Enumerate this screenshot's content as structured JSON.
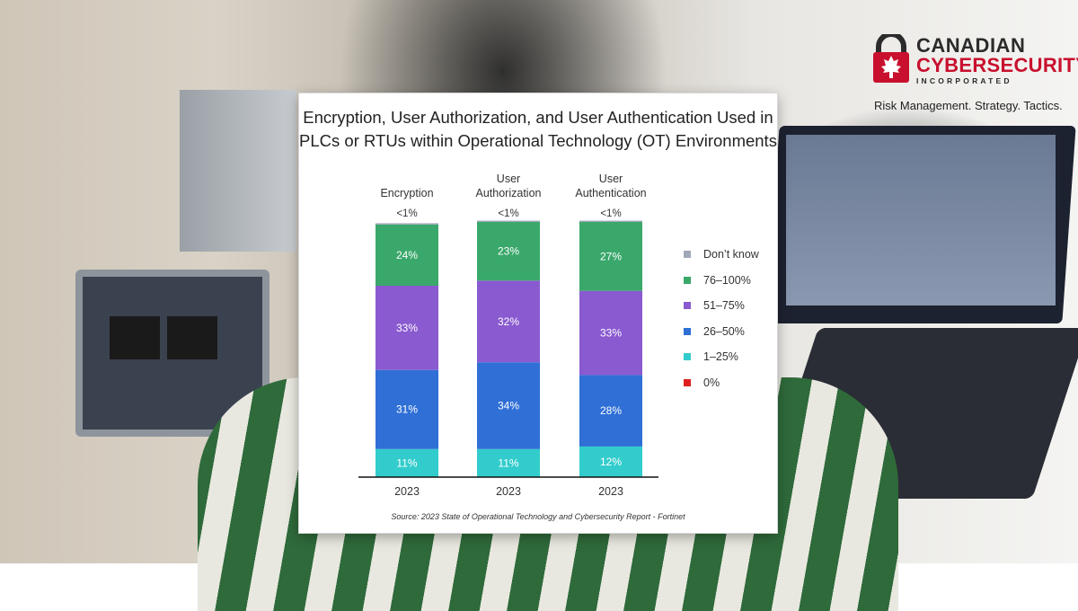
{
  "brand": {
    "line1": "CANADIAN",
    "line2": "CYBERSECURITY",
    "line3": "INCORPORATED",
    "tagline": "Risk Management. Strategy. Tactics.",
    "accent": "#c8102e"
  },
  "source": "Source: 2023 State of Operational Technology and Cybersecurity Report - Fortinet",
  "chart_data": {
    "type": "bar",
    "stacked": true,
    "title": "Encryption, User Authorization, and User Authentication Used in PLCs or RTUs within Operational Technology (OT) Environments",
    "title_lines": [
      "Encryption, User Authorization, and User Authentication Used in",
      "PLCs or RTUs within Operational Technology (OT) Environments"
    ],
    "groups": [
      {
        "label_lines": [
          "Encryption"
        ],
        "year": "2023",
        "top_label": "<1%"
      },
      {
        "label_lines": [
          "User",
          "Authorization"
        ],
        "year": "2023",
        "top_label": "<1%"
      },
      {
        "label_lines": [
          "User",
          "Authentication"
        ],
        "year": "2023",
        "top_label": "<1%"
      }
    ],
    "series": [
      {
        "name": "0%",
        "color": "#e02020",
        "values": [
          0,
          0,
          0
        ],
        "labels": [
          "",
          "",
          ""
        ]
      },
      {
        "name": "1–25%",
        "color": "#33cccc",
        "values": [
          11,
          11,
          12
        ],
        "labels": [
          "11%",
          "11%",
          "12%"
        ]
      },
      {
        "name": "26–50%",
        "color": "#2f6fd6",
        "values": [
          31,
          34,
          28
        ],
        "labels": [
          "31%",
          "34%",
          "28%"
        ]
      },
      {
        "name": "51–75%",
        "color": "#8a5ad0",
        "values": [
          33,
          32,
          33
        ],
        "labels": [
          "33%",
          "32%",
          "33%"
        ]
      },
      {
        "name": "76–100%",
        "color": "#3aa86b",
        "values": [
          24,
          23,
          27
        ],
        "labels": [
          "24%",
          "23%",
          "27%"
        ]
      },
      {
        "name": "Don’t know",
        "color": "#a0a8b8",
        "values": [
          0.5,
          0.5,
          0.5
        ],
        "labels": [
          "",
          "",
          ""
        ]
      }
    ],
    "legend_order": [
      "Don’t know",
      "76–100%",
      "51–75%",
      "26–50%",
      "1–25%",
      "0%"
    ],
    "legend_position": "right",
    "ylim": [
      0,
      100
    ],
    "grid": false
  }
}
